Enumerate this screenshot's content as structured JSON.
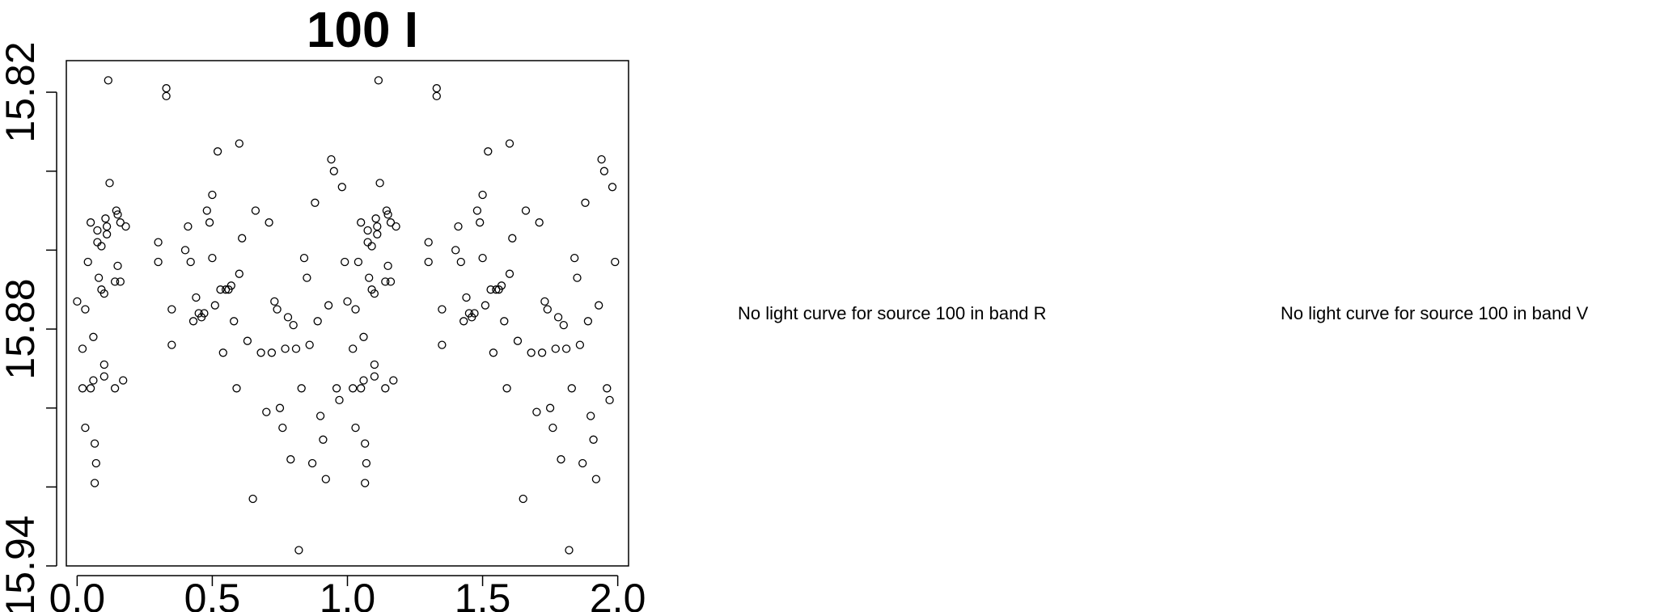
{
  "chart_data": {
    "type": "scatter",
    "title": "100 I",
    "xlabel": "",
    "ylabel": "",
    "xlim": [
      -0.04,
      2.04
    ],
    "ylim": [
      15.94,
      15.812
    ],
    "y_inverted": true,
    "x_ticks": [
      0.0,
      0.5,
      1.0,
      1.5,
      2.0
    ],
    "x_tick_labels": [
      "0.0",
      "0.5",
      "1.0",
      "1.5",
      "2.0"
    ],
    "y_ticks": [
      15.82,
      15.84,
      15.86,
      15.88,
      15.9,
      15.92,
      15.94
    ],
    "y_tick_labels": [
      "15.82",
      "",
      "",
      "15.88",
      "",
      "",
      "15.94"
    ],
    "grid": false,
    "marker": "open-circle",
    "marker_color": "#000000",
    "points_phase_0_1": [
      [
        0.02,
        15.885
      ],
      [
        0.03,
        15.875
      ],
      [
        0.02,
        15.895
      ],
      [
        0.03,
        15.905
      ],
      [
        0.04,
        15.863
      ],
      [
        0.05,
        15.853
      ],
      [
        0.05,
        15.895
      ],
      [
        0.06,
        15.882
      ],
      [
        0.06,
        15.893
      ],
      [
        0.065,
        15.909
      ],
      [
        0.07,
        15.914
      ],
      [
        0.065,
        15.919
      ],
      [
        0.075,
        15.855
      ],
      [
        0.075,
        15.858
      ],
      [
        0.08,
        15.867
      ],
      [
        0.09,
        15.859
      ],
      [
        0.09,
        15.87
      ],
      [
        0.1,
        15.889
      ],
      [
        0.1,
        15.871
      ],
      [
        0.1,
        15.892
      ],
      [
        0.105,
        15.852
      ],
      [
        0.11,
        15.854
      ],
      [
        0.11,
        15.856
      ],
      [
        0.115,
        15.817
      ],
      [
        0.12,
        15.843
      ],
      [
        0.14,
        15.868
      ],
      [
        0.14,
        15.895
      ],
      [
        0.145,
        15.85
      ],
      [
        0.15,
        15.851
      ],
      [
        0.15,
        15.864
      ],
      [
        0.16,
        15.868
      ],
      [
        0.16,
        15.853
      ],
      [
        0.17,
        15.893
      ],
      [
        0.18,
        15.854
      ],
      [
        0.3,
        15.863
      ],
      [
        0.3,
        15.858
      ],
      [
        0.33,
        15.819
      ],
      [
        0.33,
        15.821
      ],
      [
        0.35,
        15.884
      ],
      [
        0.35,
        15.875
      ],
      [
        0.4,
        15.86
      ],
      [
        0.41,
        15.854
      ],
      [
        0.42,
        15.863
      ],
      [
        0.43,
        15.878
      ],
      [
        0.44,
        15.872
      ],
      [
        0.45,
        15.876
      ],
      [
        0.46,
        15.877
      ],
      [
        0.47,
        15.876
      ],
      [
        0.48,
        15.85
      ],
      [
        0.49,
        15.853
      ],
      [
        0.5,
        15.862
      ],
      [
        0.5,
        15.846
      ],
      [
        0.51,
        15.874
      ],
      [
        0.52,
        15.835
      ],
      [
        0.53,
        15.87
      ],
      [
        0.54,
        15.886
      ],
      [
        0.55,
        15.87
      ],
      [
        0.56,
        15.87
      ],
      [
        0.57,
        15.869
      ],
      [
        0.58,
        15.878
      ],
      [
        0.59,
        15.895
      ],
      [
        0.6,
        15.833
      ],
      [
        0.6,
        15.866
      ],
      [
        0.61,
        15.857
      ],
      [
        0.63,
        15.883
      ],
      [
        0.65,
        15.923
      ],
      [
        0.66,
        15.85
      ],
      [
        0.68,
        15.886
      ],
      [
        0.7,
        15.901
      ],
      [
        0.71,
        15.853
      ],
      [
        0.72,
        15.886
      ],
      [
        0.73,
        15.873
      ],
      [
        0.74,
        15.875
      ],
      [
        0.75,
        15.9
      ],
      [
        0.76,
        15.905
      ],
      [
        0.77,
        15.885
      ],
      [
        0.78,
        15.877
      ],
      [
        0.79,
        15.913
      ],
      [
        0.8,
        15.879
      ],
      [
        0.81,
        15.885
      ],
      [
        0.82,
        15.936
      ],
      [
        0.83,
        15.895
      ],
      [
        0.84,
        15.862
      ],
      [
        0.85,
        15.867
      ],
      [
        0.86,
        15.884
      ],
      [
        0.87,
        15.914
      ],
      [
        0.88,
        15.848
      ],
      [
        0.89,
        15.878
      ],
      [
        0.9,
        15.902
      ],
      [
        0.91,
        15.908
      ],
      [
        0.92,
        15.918
      ],
      [
        0.93,
        15.874
      ],
      [
        0.94,
        15.837
      ],
      [
        0.95,
        15.84
      ],
      [
        0.96,
        15.895
      ],
      [
        0.97,
        15.898
      ],
      [
        0.98,
        15.844
      ],
      [
        0.99,
        15.863
      ],
      [
        0.0,
        15.873
      ]
    ]
  },
  "messages": {
    "band_r": "No light curve for source 100 in band R",
    "band_v": "No light curve for source 100 in band V"
  }
}
